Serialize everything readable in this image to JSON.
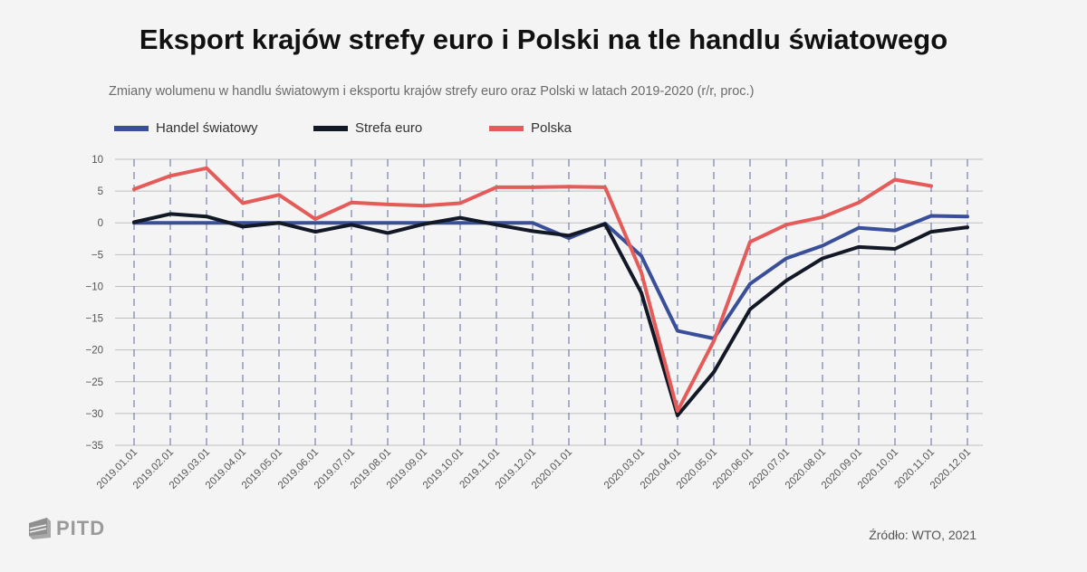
{
  "title": "Eksport krajów strefy euro i Polski na tle handlu światowego",
  "subtitle": "Zmiany wolumenu w handlu światowym i eksportu krajów strefy euro oraz Polski w latach 2019-2020 (r/r, proc.)",
  "source": "Źródło: WTO, 2021",
  "logo_text": "PITD",
  "colors": {
    "world": "#3a4f9a",
    "euro": "#121826",
    "poland": "#e45b59",
    "grid_v": "#5a6aa0",
    "grid_h": "#bfbfbf"
  },
  "chart_data": {
    "type": "line",
    "title": "Eksport krajów strefy euro i Polski na tle handlu światowego",
    "xlabel": "",
    "ylabel": "",
    "ylim": [
      -35,
      10
    ],
    "yticks": [
      10,
      5,
      0,
      -5,
      -10,
      -15,
      -20,
      -25,
      -30,
      -35
    ],
    "grid": true,
    "legend_position": "top",
    "x": [
      "2019.01.01",
      "2019.02.01",
      "2019.03.01",
      "2019.04.01",
      "2019.05.01",
      "2019.06.01",
      "2019.07.01",
      "2019.08.01",
      "2019.09.01",
      "2019.10.01",
      "2019.11.01",
      "2019.12.01",
      "2020.01.01",
      "",
      "2020.03.01",
      "2020.04.01",
      "2020.05.01",
      "2020.06.01",
      "2020.07.01",
      "2020.08.01",
      "2020.09.01",
      "2020.10.01",
      "2020.11.01",
      "2020.12.01"
    ],
    "series": [
      {
        "name": "Handel światowy",
        "color": "#3a4f9a",
        "values": [
          0,
          0,
          0,
          0,
          0,
          0,
          0,
          0,
          0,
          0,
          0,
          0,
          -2.4,
          -0.1,
          -5.2,
          -17.0,
          -18.2,
          -9.6,
          -5.6,
          -3.6,
          -0.8,
          -1.2,
          1.1,
          1.0
        ]
      },
      {
        "name": "Strefa euro",
        "color": "#121826",
        "values": [
          0.1,
          1.4,
          1.0,
          -0.6,
          0,
          -1.4,
          -0.3,
          -1.6,
          -0.2,
          0.8,
          -0.3,
          -1.3,
          -2.0,
          -0.2,
          -11.0,
          -30.3,
          -23.5,
          -13.6,
          -9.1,
          -5.6,
          -3.8,
          -4.1,
          -1.4,
          -0.7
        ]
      },
      {
        "name": "Polska",
        "color": "#e45b59",
        "values": [
          5.3,
          7.4,
          8.6,
          3.1,
          4.4,
          0.6,
          3.2,
          2.9,
          2.7,
          3.1,
          5.6,
          5.6,
          5.7,
          5.6,
          -7.8,
          -29.6,
          -18.6,
          -3.0,
          -0.3,
          0.9,
          3.2,
          6.8,
          5.8,
          null
        ]
      }
    ]
  }
}
